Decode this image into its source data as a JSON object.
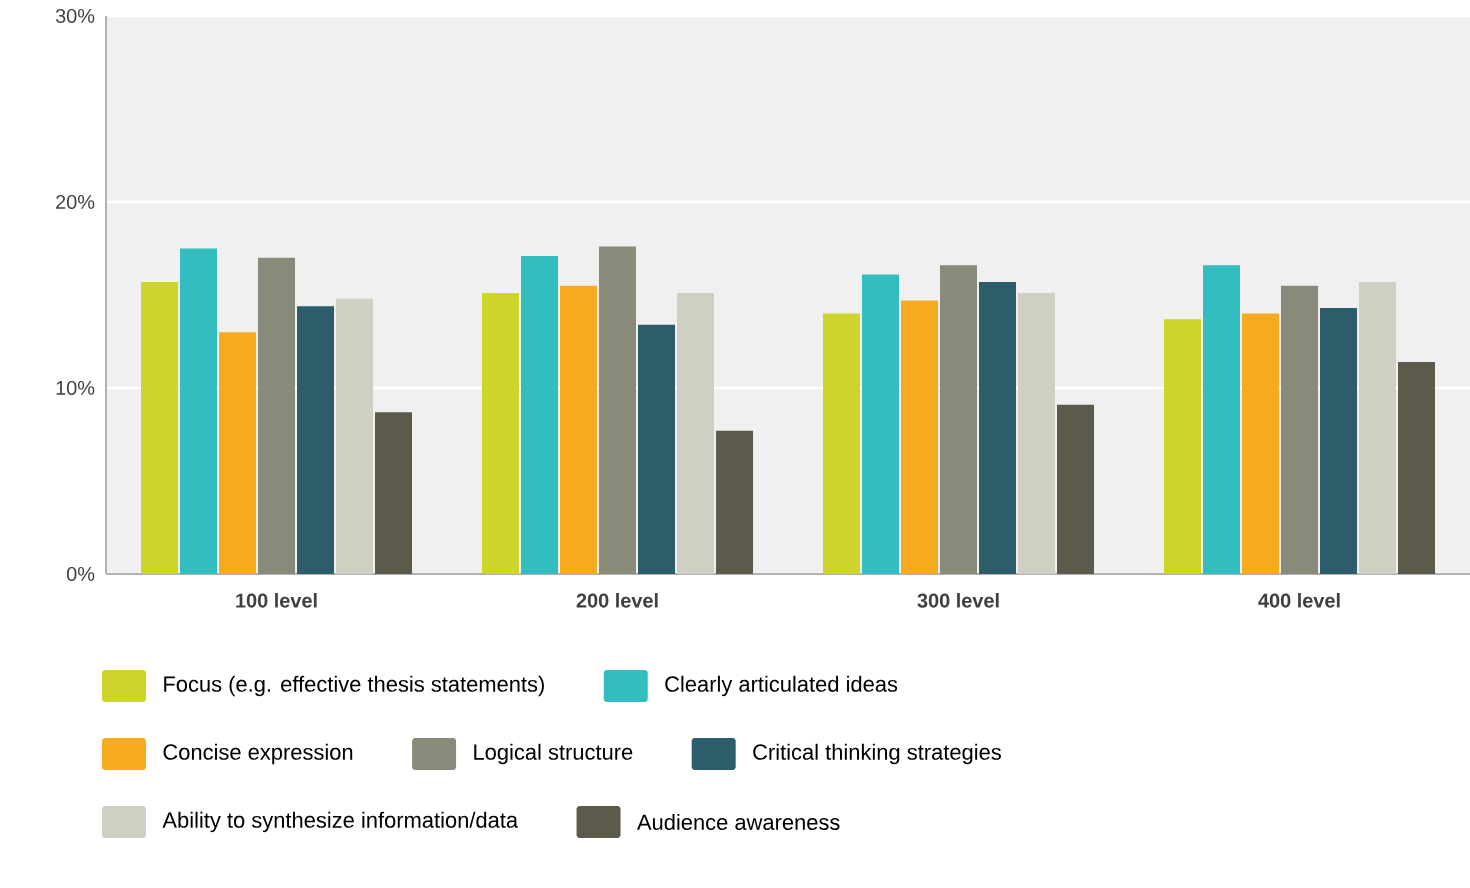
{
  "chart_data": {
    "type": "bar",
    "categories": [
      "100 level",
      "200 level",
      "300 level",
      "400 level"
    ],
    "series": [
      {
        "name": "Focus (e.g. effective thesis statements)",
        "color": "#cdd42a",
        "values": [
          15.7,
          15.1,
          14.0,
          13.7
        ]
      },
      {
        "name": "Clearly articulated ideas",
        "color": "#33bdbf",
        "values": [
          17.5,
          17.1,
          16.1,
          16.6
        ]
      },
      {
        "name": "Concise expression",
        "color": "#f5aa1f",
        "values": [
          13.0,
          15.5,
          14.7,
          14.0
        ]
      },
      {
        "name": "Logical structure",
        "color": "#898a7a",
        "values": [
          17.0,
          17.6,
          16.6,
          15.5
        ]
      },
      {
        "name": "Critical thinking strategies",
        "color": "#2d5d6b",
        "values": [
          14.4,
          13.4,
          15.7,
          14.3
        ]
      },
      {
        "name": "Ability to synthesize information/data",
        "color": "#d0cfc3",
        "values": [
          14.8,
          15.1,
          15.1,
          15.7
        ]
      },
      {
        "name": "Audience awareness",
        "color": "#5c5b4b",
        "values": [
          8.7,
          7.7,
          9.1,
          11.4
        ]
      }
    ],
    "ylim": [
      0,
      30
    ],
    "yticks": [
      {
        "value": 0,
        "label": "0%"
      },
      {
        "value": 10,
        "label": "10%"
      },
      {
        "value": 20,
        "label": "20%"
      },
      {
        "value": 30,
        "label": "30%"
      }
    ],
    "grid": "y",
    "legend": "bottom"
  }
}
